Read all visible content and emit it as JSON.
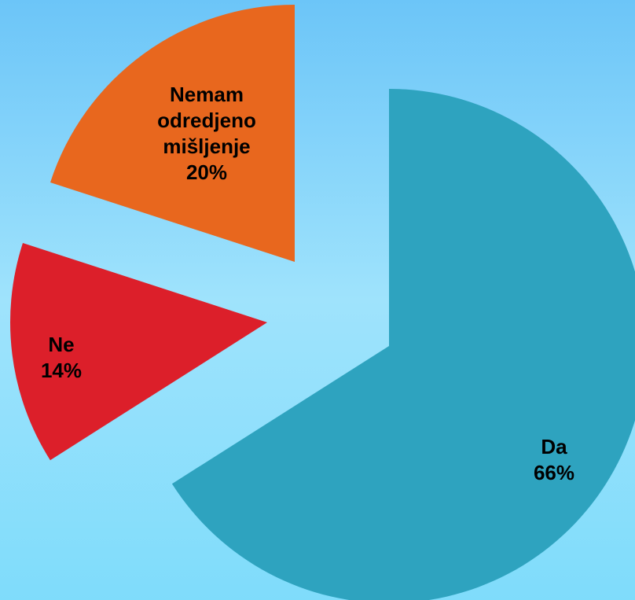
{
  "chart_data": {
    "type": "pie",
    "categories": [
      "Da",
      "Ne",
      "Nemam odredjeno mišljenje"
    ],
    "values": [
      66,
      14,
      20
    ],
    "value_labels": [
      "66%",
      "14%",
      "20%"
    ],
    "colors": [
      "#2ea3bf",
      "#dc1f2a",
      "#e8671e"
    ]
  }
}
